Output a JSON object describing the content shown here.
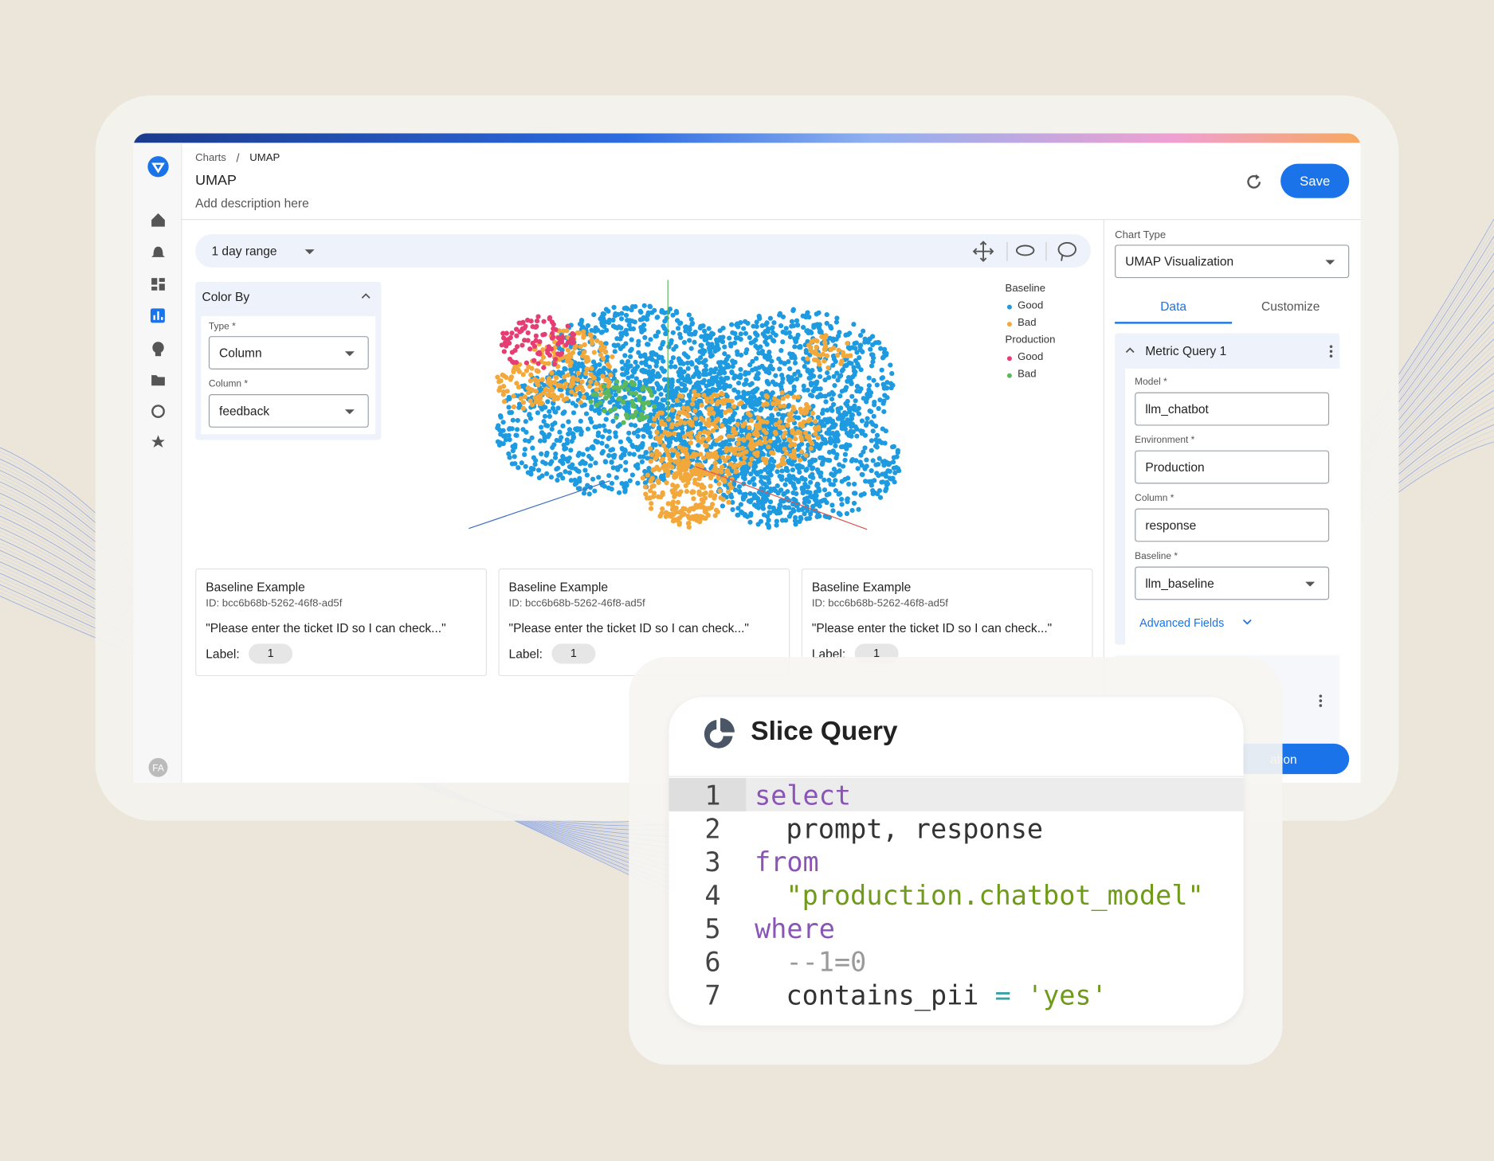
{
  "breadcrumb": [
    "Charts",
    "UMAP"
  ],
  "breadcrumb_separator": "/",
  "header": {
    "title": "UMAP",
    "description": "Add description here",
    "save": "Save"
  },
  "toolbar": {
    "range": "1 day range"
  },
  "color_by": {
    "title": "Color By",
    "type_label": "Type *",
    "type_value": "Column",
    "column_label": "Column *",
    "column_value": "feedback"
  },
  "legend": [
    {
      "group": "Baseline",
      "items": [
        {
          "name": "Good",
          "color": "#1e9be0"
        },
        {
          "name": "Bad",
          "color": "#f2a83a"
        }
      ]
    },
    {
      "group": "Production",
      "items": [
        {
          "name": "Good",
          "color": "#e53d74"
        },
        {
          "name": "Bad",
          "color": "#5cb85c"
        }
      ]
    }
  ],
  "examples": [
    {
      "title": "Baseline Example",
      "id": "ID: bcc6b68b-5262-46f8-ad5f",
      "text": "\"Please enter the ticket ID so I can check...\"",
      "label_caption": "Label:",
      "label": "1"
    },
    {
      "title": "Baseline Example",
      "id": "ID: bcc6b68b-5262-46f8-ad5f",
      "text": "\"Please enter the ticket ID so I can check...\"",
      "label_caption": "Label:",
      "label": "1"
    },
    {
      "title": "Baseline Example",
      "id": "ID: bcc6b68b-5262-46f8-ad5f",
      "text": "\"Please enter the ticket ID so I can check...\"",
      "label_caption": "Label:",
      "label": "1"
    }
  ],
  "right_panel": {
    "chart_type_label": "Chart Type",
    "chart_type": "UMAP Visualization",
    "tabs": [
      "Data",
      "Customize"
    ],
    "query_title": "Metric Query 1",
    "fields": [
      {
        "label": "Model *",
        "value": "llm_chatbot"
      },
      {
        "label": "Environment *",
        "value": "Production"
      },
      {
        "label": "Column *",
        "value": "response"
      },
      {
        "label": "Baseline *",
        "value": "llm_baseline"
      }
    ],
    "advanced": "Advanced Fields",
    "button_partial": "ation"
  },
  "avatar": "FA",
  "slice_query": {
    "title": "Slice Query",
    "lines": [
      {
        "number": "1",
        "indent": 0,
        "tokens": [
          {
            "text": "select",
            "color": "#8a55b5"
          }
        ]
      },
      {
        "number": "2",
        "indent": 1,
        "tokens": [
          {
            "text": "prompt, response",
            "color": "#333333"
          }
        ]
      },
      {
        "number": "3",
        "indent": 0,
        "tokens": [
          {
            "text": "from",
            "color": "#8a55b5"
          }
        ]
      },
      {
        "number": "4",
        "indent": 1,
        "tokens": [
          {
            "text": "\"production.chatbot_model\"",
            "color": "#6f9a1a"
          }
        ]
      },
      {
        "number": "5",
        "indent": 0,
        "tokens": [
          {
            "text": "where",
            "color": "#8a55b5"
          }
        ]
      },
      {
        "number": "6",
        "indent": 1,
        "tokens": [
          {
            "text": "--1=0",
            "color": "#9a9a9a"
          }
        ]
      },
      {
        "number": "7",
        "indent": 1,
        "tokens": [
          {
            "text": "contains_pii",
            "color": "#333333"
          },
          {
            "text": " = ",
            "color": "#3aa0a8"
          },
          {
            "text": "'yes'",
            "color": "#6f9a1a"
          }
        ]
      }
    ]
  }
}
